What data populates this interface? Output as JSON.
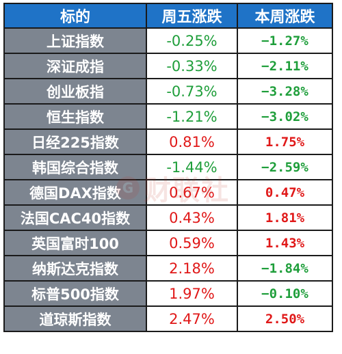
{
  "table": {
    "headers": [
      "标的",
      "周五涨跌",
      "本周涨跌"
    ],
    "rows": [
      {
        "name": "上证指数",
        "fri": "-0.25%",
        "fri_dir": "neg",
        "week": "−1.27%",
        "week_dir": "neg"
      },
      {
        "name": "深证成指",
        "fri": "-0.33%",
        "fri_dir": "neg",
        "week": "−2.11%",
        "week_dir": "neg"
      },
      {
        "name": "创业板指",
        "fri": "-0.73%",
        "fri_dir": "neg",
        "week": "−3.28%",
        "week_dir": "neg"
      },
      {
        "name": "恒生指数",
        "fri": "-1.21%",
        "fri_dir": "neg",
        "week": "−3.02%",
        "week_dir": "neg"
      },
      {
        "name": "日经225指数",
        "fri": "0.81%",
        "fri_dir": "pos",
        "week": "1.75%",
        "week_dir": "pos"
      },
      {
        "name": "韩国综合指数",
        "fri": "-1.44%",
        "fri_dir": "neg",
        "week": "−2.59%",
        "week_dir": "neg"
      },
      {
        "name": "德国DAX指数",
        "fri": "0.67%",
        "fri_dir": "pos",
        "week": "0.47%",
        "week_dir": "pos"
      },
      {
        "name": "法国CAC40指数",
        "fri": "0.43%",
        "fri_dir": "pos",
        "week": "1.81%",
        "week_dir": "pos"
      },
      {
        "name": "英国富时100",
        "fri": "0.59%",
        "fri_dir": "pos",
        "week": "1.43%",
        "week_dir": "pos"
      },
      {
        "name": "纳斯达克指数",
        "fri": "2.18%",
        "fri_dir": "pos",
        "week": "−1.84%",
        "week_dir": "neg"
      },
      {
        "name": "标普500指数",
        "fri": "1.97%",
        "fri_dir": "pos",
        "week": "−0.10%",
        "week_dir": "neg"
      },
      {
        "name": "道琼斯指数",
        "fri": "2.47%",
        "fri_dir": "pos",
        "week": "2.50%",
        "week_dir": "pos"
      }
    ]
  },
  "colors": {
    "header_bg": "#1f73c7",
    "name_bg": "#7d8590",
    "negative": "#1e9e3a",
    "positive": "#e01818"
  },
  "watermark": {
    "badge": "G",
    "text": "财联社"
  }
}
